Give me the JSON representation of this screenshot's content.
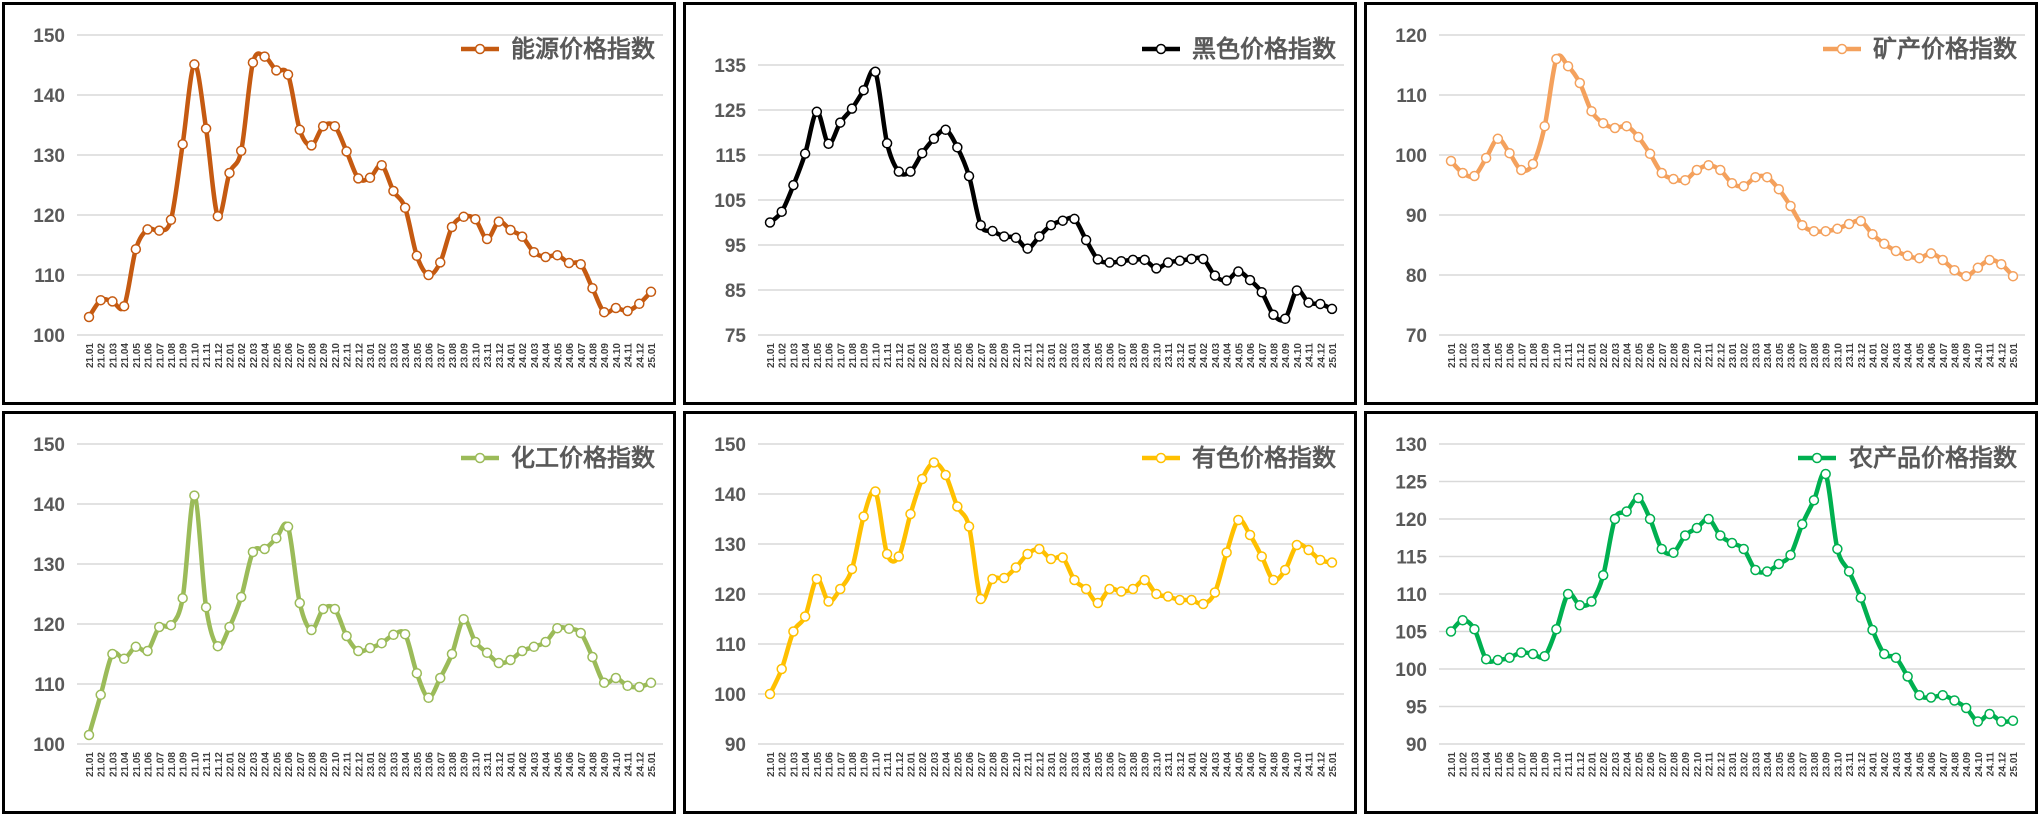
{
  "chart_data": [
    {
      "type": "line",
      "legend": "能源价格指数",
      "legend_position": "top-right",
      "color": "#C55A11",
      "ylim": [
        100,
        150
      ],
      "yticks": [
        100,
        110,
        120,
        130,
        140,
        150
      ],
      "grid": true,
      "values": [
        103,
        105.8,
        105.6,
        104.8,
        114.3,
        117.6,
        117.4,
        119.2,
        131.8,
        145.1,
        134.4,
        119.8,
        127,
        130.7,
        145.4,
        146.4,
        144.1,
        143.4,
        134.2,
        131.6,
        134.8,
        134.8,
        130.6,
        126.1,
        126.2,
        128.3,
        124,
        121.2,
        113.2,
        110,
        112.1,
        118,
        119.7,
        119.3,
        116,
        118.9,
        117.5,
        116.4,
        113.8,
        113,
        113.3,
        112,
        111.8,
        107.8,
        103.8,
        104.5,
        104,
        105.2,
        107.2
      ]
    },
    {
      "type": "line",
      "legend": "黑色价格指数",
      "legend_position": "top-right",
      "color": "#000000",
      "ylim": [
        75,
        135
      ],
      "yticks": [
        75,
        85,
        95,
        105,
        115,
        125,
        135
      ],
      "grid": true,
      "values": [
        100,
        102.4,
        108.3,
        115.3,
        124.6,
        117.5,
        122.2,
        125.3,
        129.4,
        133.5,
        117.6,
        111.3,
        111.3,
        115.4,
        118.6,
        120.6,
        116.7,
        110.3,
        99.4,
        98.1,
        96.9,
        96.6,
        94.2,
        96.9,
        99.4,
        100.4,
        100.8,
        96.1,
        91.8,
        91.1,
        91.4,
        91.7,
        91.7,
        89.8,
        91.1,
        91.5,
        91.9,
        91.9,
        88.2,
        87.1,
        89.1,
        87.2,
        84.5,
        79.5,
        78.6,
        84.9,
        82.2,
        81.9,
        80.8
      ]
    },
    {
      "type": "line",
      "legend": "矿产价格指数",
      "legend_position": "top-right",
      "color": "#F4A15D",
      "ylim": [
        70,
        120
      ],
      "yticks": [
        70,
        80,
        90,
        100,
        110,
        120
      ],
      "grid": true,
      "values": [
        99,
        97,
        96.5,
        99.5,
        102.7,
        100.3,
        97.5,
        98.5,
        104.8,
        116,
        114.8,
        112,
        107.3,
        105.3,
        104.5,
        104.8,
        103,
        100.2,
        97,
        96,
        95.8,
        97.5,
        98.3,
        97.5,
        95.3,
        94.8,
        96.3,
        96.3,
        94.3,
        91.5,
        88.3,
        87.3,
        87.3,
        87.7,
        88.5,
        89,
        86.8,
        85.2,
        84,
        83.2,
        82.8,
        83.6,
        82.5,
        80.8,
        79.8,
        81.2,
        82.5,
        81.8,
        79.8
      ]
    },
    {
      "type": "line",
      "legend": "化工价格指数",
      "legend_position": "top-right",
      "color": "#9BBB59",
      "ylim": [
        100,
        150
      ],
      "yticks": [
        100,
        110,
        120,
        130,
        140,
        150
      ],
      "grid": true,
      "values": [
        101.5,
        108.2,
        115,
        114.2,
        116.2,
        115.5,
        119.5,
        119.8,
        124.3,
        141.4,
        122.8,
        116.3,
        119.5,
        124.5,
        132,
        132.5,
        134.3,
        136.2,
        123.5,
        119,
        122.5,
        122.5,
        118,
        115.5,
        116,
        116.8,
        118.2,
        118.3,
        111.8,
        107.7,
        111,
        115,
        120.8,
        117,
        115.2,
        113.5,
        114,
        115.5,
        116.2,
        117,
        119.3,
        119.2,
        118.5,
        114.5,
        110.2,
        111,
        109.7,
        109.5,
        110.2
      ]
    },
    {
      "type": "line",
      "legend": "有色价格指数",
      "legend_position": "top-right",
      "color": "#FFC000",
      "ylim": [
        90,
        150
      ],
      "yticks": [
        90,
        100,
        110,
        120,
        130,
        140,
        150
      ],
      "grid": true,
      "values": [
        100,
        105,
        112.5,
        115.5,
        123,
        118.5,
        121,
        125,
        135.5,
        140.5,
        128,
        127.5,
        136,
        143,
        146.3,
        143.8,
        137.5,
        133.5,
        119,
        123,
        123.2,
        125.3,
        128,
        129,
        127,
        127.3,
        122.8,
        121,
        118.2,
        121,
        120.5,
        121,
        122.8,
        120,
        119.5,
        118.8,
        118.8,
        118,
        120.3,
        128.3,
        134.8,
        131.8,
        127.5,
        122.8,
        124.8,
        129.8,
        128.8,
        126.8,
        126.3
      ]
    },
    {
      "type": "line",
      "legend": "农产品价格指数",
      "legend_position": "top-right",
      "color": "#00B050",
      "ylim": [
        90,
        130
      ],
      "yticks": [
        90,
        95,
        100,
        105,
        110,
        115,
        120,
        125,
        130
      ],
      "grid": true,
      "values": [
        105,
        106.5,
        105.3,
        101.3,
        101.2,
        101.5,
        102.2,
        102,
        101.7,
        105.3,
        110,
        108.5,
        109,
        112.5,
        120,
        121,
        122.8,
        120,
        116,
        115.5,
        117.8,
        118.8,
        120,
        117.8,
        116.8,
        116,
        113.2,
        113,
        114,
        115.2,
        119.3,
        122.5,
        126,
        116,
        113,
        109.5,
        105.2,
        102,
        101.5,
        99,
        96.5,
        96.2,
        96.5,
        95.8,
        94.8,
        93,
        94,
        93,
        93.1
      ]
    }
  ],
  "categories": [
    "21.01",
    "21.02",
    "21.03",
    "21.04",
    "21.05",
    "21.06",
    "21.07",
    "21.08",
    "21.09",
    "21.10",
    "21.11",
    "21.12",
    "22.01",
    "22.02",
    "22.03",
    "22.04",
    "22.05",
    "22.06",
    "22.07",
    "22.08",
    "22.09",
    "22.10",
    "22.11",
    "22.12",
    "23.01",
    "23.02",
    "23.03",
    "23.04",
    "23.05",
    "23.06",
    "23.07",
    "23.08",
    "23.09",
    "23.10",
    "23.11",
    "23.12",
    "24.01",
    "24.02",
    "24.03",
    "24.04",
    "24.05",
    "24.06",
    "24.07",
    "24.08",
    "24.09",
    "24.10",
    "24.11",
    "24.12",
    "25.01"
  ]
}
